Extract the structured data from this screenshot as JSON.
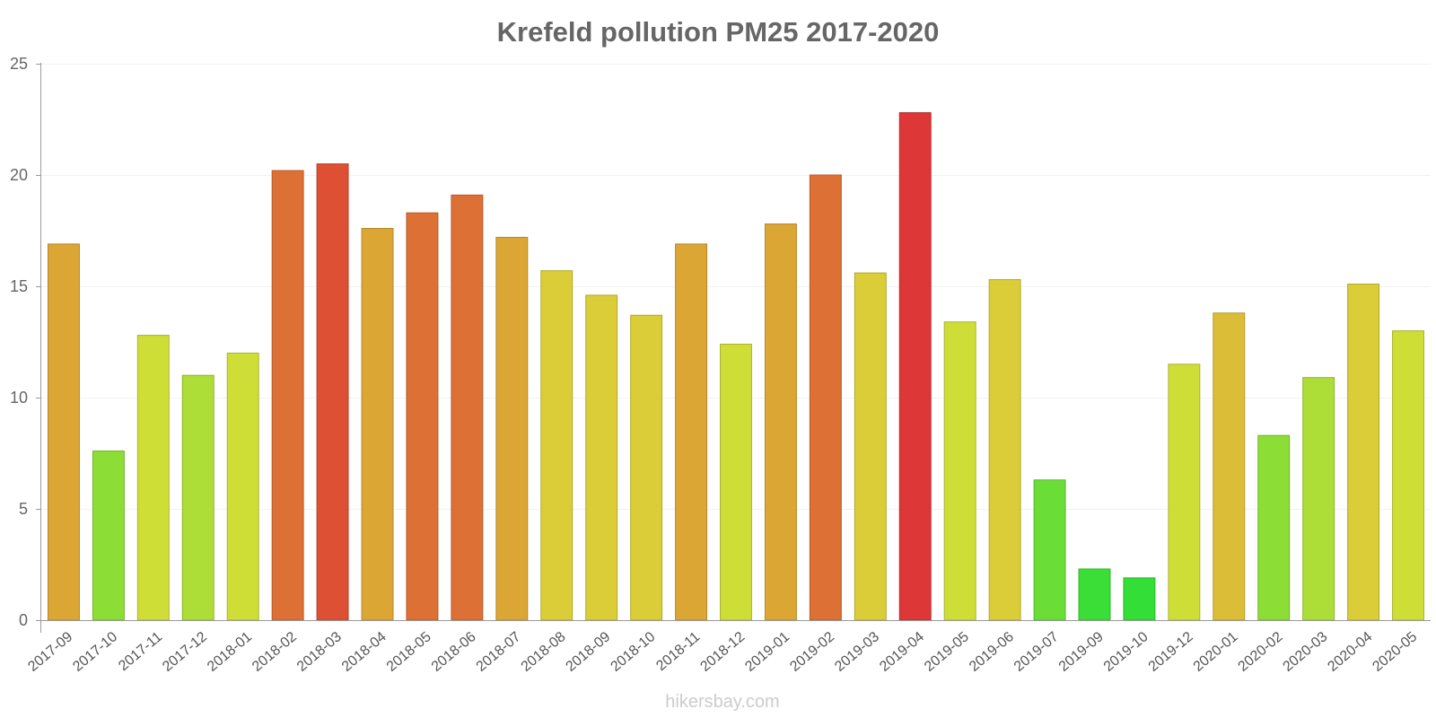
{
  "chart_data": {
    "type": "bar",
    "title": "Krefeld pollution PM25 2017-2020",
    "xlabel": "",
    "ylabel": "",
    "ylim": [
      0,
      25
    ],
    "yticks": [
      "0",
      "5",
      "10",
      "15",
      "20",
      "25"
    ],
    "grid": true,
    "categories": [
      "2017-09",
      "2017-10",
      "2017-11",
      "2017-12",
      "2018-01",
      "2018-02",
      "2018-03",
      "2018-04",
      "2018-05",
      "2018-06",
      "2018-07",
      "2018-08",
      "2018-09",
      "2018-10",
      "2018-11",
      "2018-12",
      "2019-01",
      "2019-02",
      "2019-03",
      "2019-04",
      "2019-05",
      "2019-06",
      "2019-07",
      "2019-09",
      "2019-10",
      "2019-12",
      "2020-01",
      "2020-02",
      "2020-03",
      "2020-04",
      "2020-05"
    ],
    "values": [
      16.9,
      7.6,
      12.8,
      11.0,
      12.0,
      20.2,
      20.5,
      17.6,
      18.3,
      19.1,
      17.2,
      15.7,
      14.6,
      13.7,
      16.9,
      12.4,
      17.8,
      20.0,
      15.6,
      22.8,
      13.4,
      15.3,
      6.3,
      2.3,
      1.9,
      11.5,
      13.8,
      8.3,
      10.9,
      15.1,
      13.0
    ],
    "colors": [
      "#dba634",
      "#8ddd37",
      "#cfdd37",
      "#addd37",
      "#cfdd37",
      "#dd7034",
      "#dd5034",
      "#dba634",
      "#dd7034",
      "#dd7034",
      "#dba634",
      "#dbcd37",
      "#dbcd37",
      "#dbcd37",
      "#dba634",
      "#cfdd37",
      "#dba634",
      "#dd7034",
      "#dbcd37",
      "#dd3737",
      "#cfdd37",
      "#dbcd37",
      "#6ade37",
      "#3ade37",
      "#33de37",
      "#cfdd37",
      "#dbbd37",
      "#8ddd37",
      "#addd37",
      "#dbcd37",
      "#cfdd37"
    ]
  },
  "source_label": "hikersbay.com"
}
